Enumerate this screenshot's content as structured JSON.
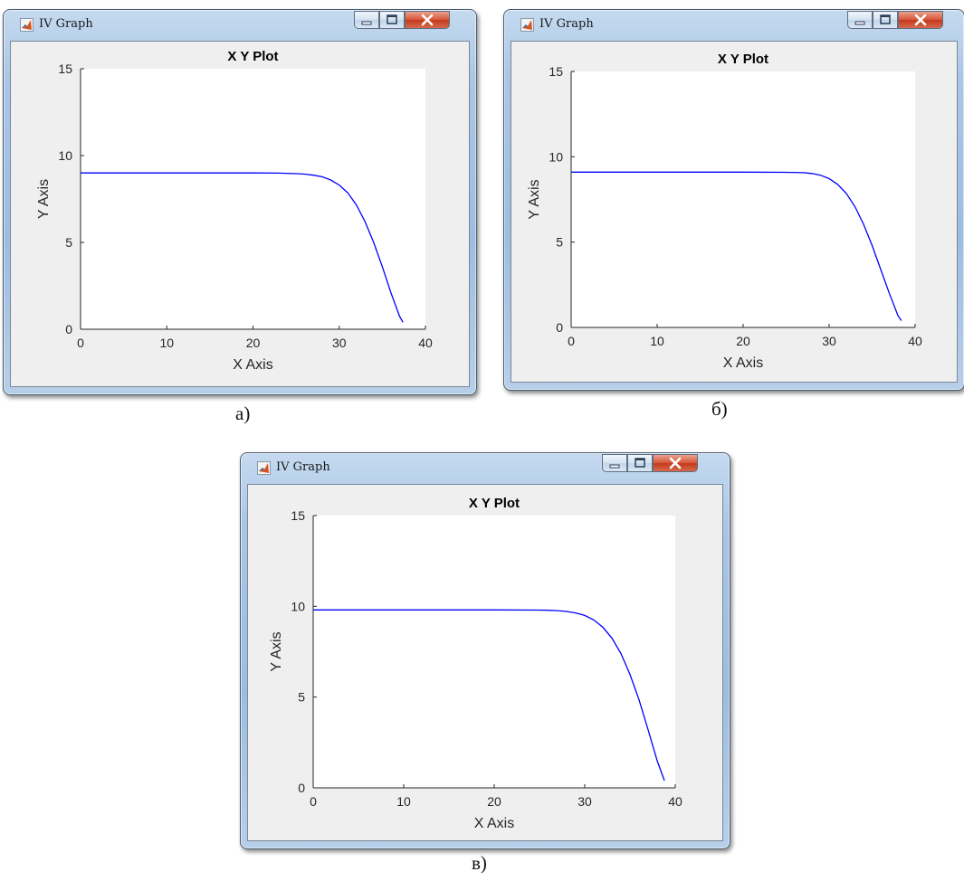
{
  "windows": [
    {
      "title": "IV Graph",
      "caption": "а)",
      "chart_data": {
        "type": "line",
        "title": "X Y Plot",
        "xlabel": "X Axis",
        "ylabel": "Y Axis",
        "xlim": [
          0,
          40
        ],
        "ylim": [
          0,
          15
        ],
        "xticks": [
          "0",
          "10",
          "20",
          "30",
          "40"
        ],
        "yticks": [
          "0",
          "5",
          "10",
          "15"
        ],
        "grid": false,
        "legend": "none",
        "series": [
          {
            "color": "#0000ff",
            "x": [
              0,
              10,
              20,
              23,
              25,
              26,
              27,
              28,
              29,
              30,
              31,
              32,
              33,
              34,
              35,
              36,
              37,
              37.4
            ],
            "y": [
              9.0,
              9.0,
              9.0,
              8.99,
              8.96,
              8.93,
              8.87,
              8.78,
              8.6,
              8.3,
              7.85,
              7.15,
              6.2,
              5.0,
              3.6,
              2.1,
              0.75,
              0.4
            ]
          }
        ]
      }
    },
    {
      "title": "IV Graph",
      "caption": "б)",
      "chart_data": {
        "type": "line",
        "title": "X Y Plot",
        "xlabel": "X Axis",
        "ylabel": "Y Axis",
        "xlim": [
          0,
          40
        ],
        "ylim": [
          0,
          15
        ],
        "xticks": [
          "0",
          "10",
          "20",
          "30",
          "40"
        ],
        "yticks": [
          "0",
          "5",
          "10",
          "15"
        ],
        "grid": false,
        "legend": "none",
        "series": [
          {
            "color": "#0000ff",
            "x": [
              0,
              10,
              20,
              25,
              27,
              28,
              29,
              30,
              31,
              32,
              33,
              34,
              35,
              36,
              37,
              38,
              38.4
            ],
            "y": [
              9.1,
              9.1,
              9.1,
              9.09,
              9.07,
              9.02,
              8.92,
              8.72,
              8.38,
              7.85,
              7.08,
              6.05,
              4.8,
              3.4,
              2.0,
              0.7,
              0.4
            ]
          }
        ]
      }
    },
    {
      "title": "IV Graph",
      "caption": "в)",
      "chart_data": {
        "type": "line",
        "title": "X Y Plot",
        "xlabel": "X Axis",
        "ylabel": "Y Axis",
        "xlim": [
          0,
          40
        ],
        "ylim": [
          0,
          15
        ],
        "xticks": [
          "0",
          "10",
          "20",
          "30",
          "40"
        ],
        "yticks": [
          "0",
          "5",
          "10",
          "15"
        ],
        "grid": false,
        "legend": "none",
        "series": [
          {
            "color": "#0000ff",
            "x": [
              0,
              10,
              20,
              25,
              26,
              27,
              28,
              29,
              30,
              31,
              32,
              33,
              34,
              35,
              36,
              37,
              38,
              38.8
            ],
            "y": [
              9.8,
              9.8,
              9.8,
              9.79,
              9.78,
              9.76,
              9.72,
              9.64,
              9.5,
              9.25,
              8.85,
              8.25,
              7.4,
              6.25,
              4.85,
              3.2,
              1.5,
              0.4
            ]
          }
        ]
      }
    }
  ]
}
